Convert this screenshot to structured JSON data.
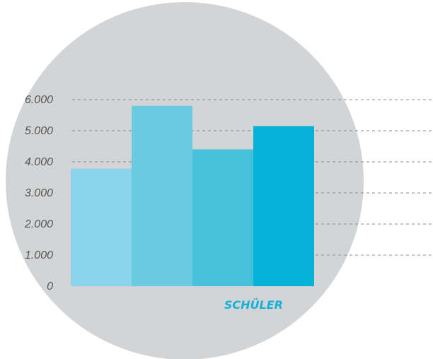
{
  "chart_data": {
    "type": "bar",
    "categories": [
      "",
      "",
      "",
      ""
    ],
    "values": [
      3780,
      5800,
      4400,
      5150
    ],
    "bar_colors": [
      "#8ad3ec",
      "#68cbe0",
      "#47c0da",
      "#06b3d8"
    ],
    "title": "",
    "xlabel": "SCHÜLER",
    "ylabel": "",
    "ylim": [
      0,
      6000
    ],
    "yticks": [
      0,
      1000,
      2000,
      3000,
      4000,
      5000,
      6000
    ],
    "ytick_labels": [
      "0",
      "1.000",
      "2.000",
      "3.000",
      "4.000",
      "5.000",
      "6.000"
    ],
    "grid": true,
    "legend": "none"
  },
  "colors": {
    "background_circle": "#d3d4d5",
    "grid_line": "#888888",
    "xlabel": "#13b1d8",
    "tick_text": "#555555"
  }
}
